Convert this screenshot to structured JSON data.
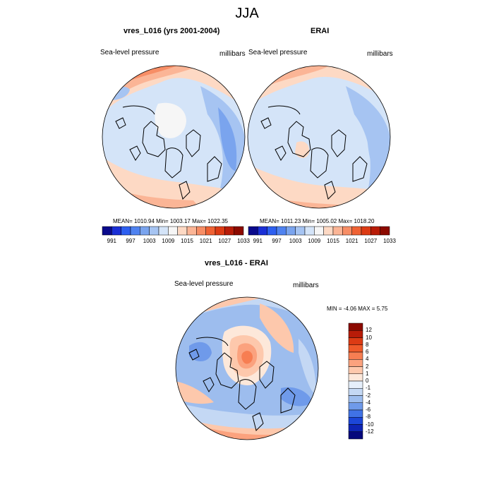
{
  "page": {
    "title": "JJA"
  },
  "panels": {
    "model": {
      "title": "vres_L016 (yrs 2001-2004)",
      "left_label": "Sea-level pressure",
      "right_label": "millibars",
      "stats": "MEAN= 1010.94  Min= 1003.17  Max= 1022.35"
    },
    "obs": {
      "title": "ERAI",
      "left_label": "Sea-level pressure",
      "right_label": "millibars",
      "stats": "MEAN= 1011.23  Min= 1005.02  Max= 1018.20"
    },
    "diff": {
      "title": "vres_L016 - ERAI",
      "left_label": "Sea-level pressure",
      "right_label": "millibars",
      "stats": "MIN =  -4.06 MAX =   5.75"
    }
  },
  "abs_colorbar": {
    "tick_labels": [
      "991",
      "997",
      "1003",
      "1009",
      "1015",
      "1021",
      "1027",
      "1033"
    ],
    "colors": [
      "#0a0a8c",
      "#1a2fd6",
      "#2d5ff0",
      "#4f82f0",
      "#7aa4ee",
      "#a6c4f2",
      "#d4e4f8",
      "#f6f6f6",
      "#fdd9c4",
      "#fbb596",
      "#f78e66",
      "#ef6234",
      "#dc3b14",
      "#b81c08",
      "#8c0a00"
    ]
  },
  "diff_colorbar": {
    "tick_labels": [
      "12",
      "10",
      "8",
      "6",
      "4",
      "2",
      "1",
      "0",
      "-1",
      "-2",
      "-4",
      "-6",
      "-8",
      "-10",
      "-12"
    ],
    "colors": [
      "#8c0a00",
      "#b81c08",
      "#dc3b14",
      "#ef5a2a",
      "#f77e52",
      "#fba27e",
      "#fdc8ac",
      "#fde8da",
      "#e6effb",
      "#c4d8f4",
      "#9dbdee",
      "#6f9aea",
      "#4072e6",
      "#1c46d8",
      "#0e24b4",
      "#05087c"
    ]
  }
}
